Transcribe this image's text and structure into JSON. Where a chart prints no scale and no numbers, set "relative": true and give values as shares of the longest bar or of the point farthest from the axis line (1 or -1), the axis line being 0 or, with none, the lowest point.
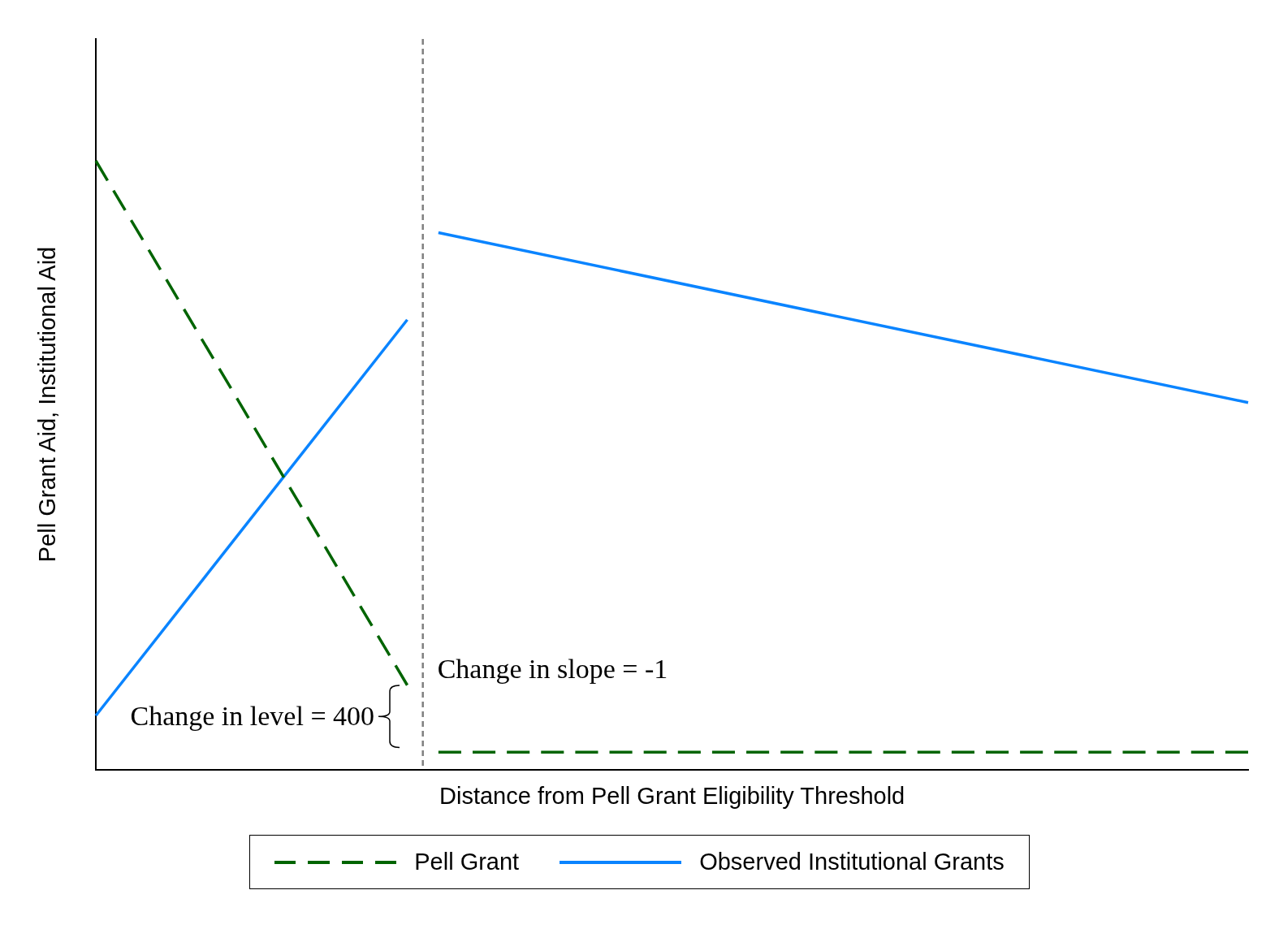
{
  "chart_data": {
    "type": "line",
    "relative": true,
    "xlabel": "Distance from Pell Grant Eligibility Threshold",
    "ylabel": "Pell Grant Aid, Institutional Aid",
    "tick_labels": false,
    "grid": false,
    "legend": "bottom",
    "marker": "none",
    "categories": [
      null,
      null,
      null,
      null,
      null,
      null,
      null,
      null,
      null,
      null,
      null,
      null,
      null,
      null,
      null,
      null,
      null,
      null,
      null,
      null,
      null,
      null,
      null,
      null,
      null,
      null,
      null,
      null,
      null,
      null,
      null,
      null,
      null,
      null,
      null,
      null,
      null,
      null
    ],
    "series": [
      {
        "name": "Pell Grant",
        "color": "#006400",
        "line_style": "dashed",
        "values": [
          1,
          null,
          null,
          null,
          null,
          null,
          null,
          null,
          null,
          null,
          0.139,
          null,
          null,
          null,
          null,
          null,
          null,
          null,
          null,
          null,
          null,
          null,
          null,
          null,
          null,
          null,
          null,
          null,
          null,
          null,
          null,
          null,
          null,
          null,
          null,
          null,
          null,
          null
        ]
      },
      {
        "color": "#006400",
        "line_style": "dashed",
        "values": [
          null,
          null,
          null,
          null,
          null,
          null,
          null,
          null,
          null,
          null,
          null,
          0.029,
          null,
          null,
          null,
          null,
          null,
          null,
          null,
          null,
          null,
          null,
          null,
          null,
          null,
          null,
          null,
          null,
          null,
          null,
          null,
          null,
          null,
          null,
          null,
          null,
          null,
          0.029
        ]
      },
      {
        "name": "Observed Institutional Grants",
        "color": "#0a84ff",
        "line_style": "solid",
        "values": [
          0.089,
          null,
          null,
          null,
          null,
          null,
          null,
          null,
          null,
          null,
          0.739,
          null,
          null,
          null,
          null,
          null,
          null,
          null,
          null,
          null,
          null,
          null,
          null,
          null,
          null,
          null,
          null,
          null,
          null,
          null,
          null,
          null,
          null,
          null,
          null,
          null,
          null,
          null
        ]
      },
      {
        "color": "#0a84ff",
        "line_style": "solid",
        "values": [
          null,
          null,
          null,
          null,
          null,
          null,
          null,
          null,
          null,
          null,
          null,
          0.882,
          null,
          null,
          null,
          null,
          null,
          null,
          null,
          null,
          null,
          null,
          null,
          null,
          null,
          null,
          null,
          null,
          null,
          null,
          null,
          null,
          null,
          null,
          null,
          null,
          null,
          0.603
        ]
      }
    ],
    "ref_lines": [
      {
        "axis": "x",
        "color": "#808080",
        "line_style": "dashed"
      }
    ],
    "annotations": [
      "Change in level = 400",
      "Change in slope = -1"
    ]
  }
}
